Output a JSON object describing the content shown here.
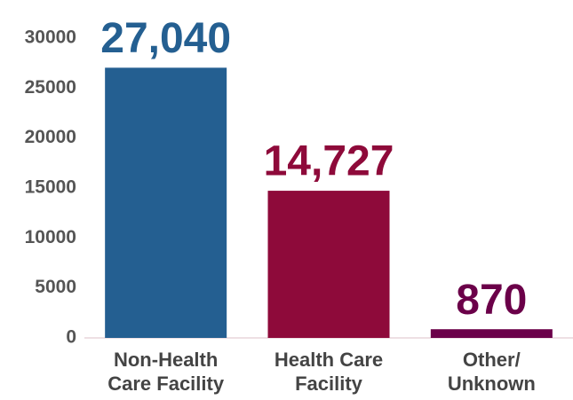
{
  "chart_data": {
    "type": "bar",
    "categories": [
      "Non-Health Care Facility",
      "Health Care Facility",
      "Other/ Unknown"
    ],
    "values": [
      27040,
      14727,
      870
    ],
    "value_labels": [
      "27,040",
      "14,727",
      "870"
    ],
    "colors": [
      "#245f91",
      "#8e0a3a",
      "#6b0049"
    ],
    "ylim": [
      0,
      30000
    ],
    "yticks": [
      0,
      5000,
      10000,
      15000,
      20000,
      25000,
      30000
    ],
    "grid": false
  }
}
